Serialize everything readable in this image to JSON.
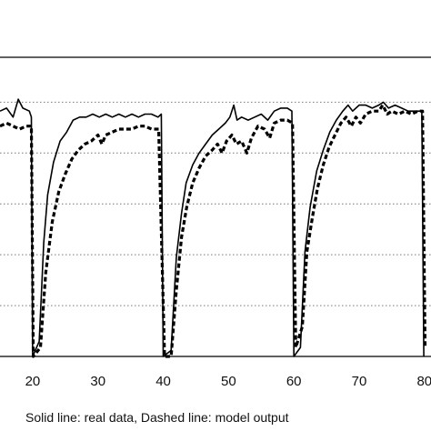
{
  "chart_data": {
    "type": "line",
    "grid": "horizontal dotted",
    "xlim": [
      15,
      81
    ],
    "ylim": [
      0,
      1
    ],
    "x_ticks": [
      20,
      30,
      40,
      50,
      60,
      70,
      80
    ],
    "x_tick_labels": [
      "20",
      "30",
      "40",
      "50",
      "60",
      "70",
      "80"
    ],
    "caption": "Solid line: real data,  Dashed line: model output",
    "series": [
      {
        "style": "solid",
        "color": "#000000",
        "points": [
          [
            15,
            0.82
          ],
          [
            16,
            0.83
          ],
          [
            17,
            0.8
          ],
          [
            17.8,
            0.86
          ],
          [
            18.5,
            0.83
          ],
          [
            19.5,
            0.82
          ],
          [
            19.8,
            0.8
          ],
          [
            20,
            0.0
          ],
          [
            21,
            0.05
          ],
          [
            21.7,
            0.38
          ],
          [
            22.3,
            0.54
          ],
          [
            23.2,
            0.65
          ],
          [
            24.2,
            0.72
          ],
          [
            25.2,
            0.75
          ],
          [
            26.2,
            0.79
          ],
          [
            27.2,
            0.8
          ],
          [
            28.2,
            0.8
          ],
          [
            29.2,
            0.81
          ],
          [
            30.2,
            0.8
          ],
          [
            31.2,
            0.81
          ],
          [
            32.2,
            0.8
          ],
          [
            33.2,
            0.81
          ],
          [
            34.2,
            0.8
          ],
          [
            35.2,
            0.81
          ],
          [
            36.2,
            0.8
          ],
          [
            37.2,
            0.81
          ],
          [
            38.2,
            0.81
          ],
          [
            39.2,
            0.8
          ],
          [
            39.7,
            0.81
          ],
          [
            40.0,
            0.0
          ],
          [
            41.2,
            0.02
          ],
          [
            42.0,
            0.33
          ],
          [
            42.8,
            0.48
          ],
          [
            43.5,
            0.58
          ],
          [
            44.5,
            0.64
          ],
          [
            45.5,
            0.68
          ],
          [
            46.5,
            0.71
          ],
          [
            47.5,
            0.74
          ],
          [
            48.5,
            0.76
          ],
          [
            49.5,
            0.78
          ],
          [
            50.2,
            0.8
          ],
          [
            50.8,
            0.84
          ],
          [
            51.3,
            0.79
          ],
          [
            52.0,
            0.8
          ],
          [
            53.0,
            0.79
          ],
          [
            54.0,
            0.8
          ],
          [
            55.0,
            0.81
          ],
          [
            56.0,
            0.79
          ],
          [
            57.0,
            0.82
          ],
          [
            58.0,
            0.83
          ],
          [
            59.0,
            0.83
          ],
          [
            59.7,
            0.82
          ],
          [
            60.0,
            0.0
          ],
          [
            61.0,
            0.03
          ],
          [
            61.7,
            0.35
          ],
          [
            62.5,
            0.5
          ],
          [
            63.5,
            0.62
          ],
          [
            64.5,
            0.69
          ],
          [
            65.5,
            0.75
          ],
          [
            66.5,
            0.79
          ],
          [
            67.5,
            0.82
          ],
          [
            68.3,
            0.84
          ],
          [
            69.0,
            0.82
          ],
          [
            70.0,
            0.84
          ],
          [
            71.0,
            0.84
          ],
          [
            72.0,
            0.83
          ],
          [
            73.0,
            0.84
          ],
          [
            73.7,
            0.85
          ],
          [
            74.5,
            0.83
          ],
          [
            75.5,
            0.84
          ],
          [
            76.5,
            0.83
          ],
          [
            77.5,
            0.82
          ],
          [
            78.5,
            0.82
          ],
          [
            79.6,
            0.82
          ],
          [
            79.9,
            0.0
          ]
        ]
      },
      {
        "style": "dashed",
        "color": "#000000",
        "points": [
          [
            15,
            0.77
          ],
          [
            16,
            0.78
          ],
          [
            17,
            0.77
          ],
          [
            18,
            0.76
          ],
          [
            19,
            0.77
          ],
          [
            19.8,
            0.77
          ],
          [
            20.1,
            0.0
          ],
          [
            21.2,
            0.03
          ],
          [
            22.0,
            0.28
          ],
          [
            23.0,
            0.45
          ],
          [
            24.0,
            0.55
          ],
          [
            25.0,
            0.61
          ],
          [
            26.0,
            0.66
          ],
          [
            27.0,
            0.69
          ],
          [
            28.0,
            0.71
          ],
          [
            29.0,
            0.72
          ],
          [
            30.0,
            0.74
          ],
          [
            30.6,
            0.71
          ],
          [
            31.2,
            0.74
          ],
          [
            32.2,
            0.75
          ],
          [
            33.2,
            0.76
          ],
          [
            34.2,
            0.76
          ],
          [
            35.2,
            0.76
          ],
          [
            36.2,
            0.77
          ],
          [
            37.2,
            0.77
          ],
          [
            38.2,
            0.76
          ],
          [
            39.3,
            0.76
          ],
          [
            40.2,
            0.0
          ],
          [
            41.2,
            0.0
          ],
          [
            42.0,
            0.22
          ],
          [
            42.8,
            0.4
          ],
          [
            43.6,
            0.5
          ],
          [
            44.5,
            0.58
          ],
          [
            45.5,
            0.63
          ],
          [
            46.5,
            0.67
          ],
          [
            47.5,
            0.69
          ],
          [
            48.3,
            0.71
          ],
          [
            49.0,
            0.68
          ],
          [
            49.7,
            0.72
          ],
          [
            50.5,
            0.74
          ],
          [
            51.2,
            0.71
          ],
          [
            52.0,
            0.72
          ],
          [
            52.8,
            0.68
          ],
          [
            53.5,
            0.73
          ],
          [
            54.5,
            0.77
          ],
          [
            55.5,
            0.76
          ],
          [
            56.3,
            0.73
          ],
          [
            57.0,
            0.78
          ],
          [
            58.0,
            0.79
          ],
          [
            59.0,
            0.79
          ],
          [
            59.8,
            0.78
          ],
          [
            60.3,
            0.03
          ],
          [
            61.3,
            0.1
          ],
          [
            62.0,
            0.35
          ],
          [
            62.8,
            0.46
          ],
          [
            63.6,
            0.56
          ],
          [
            64.5,
            0.64
          ],
          [
            65.4,
            0.7
          ],
          [
            66.3,
            0.74
          ],
          [
            67.2,
            0.78
          ],
          [
            68.0,
            0.8
          ],
          [
            68.8,
            0.77
          ],
          [
            69.5,
            0.8
          ],
          [
            70.2,
            0.78
          ],
          [
            71.0,
            0.81
          ],
          [
            72.0,
            0.82
          ],
          [
            73.0,
            0.82
          ],
          [
            73.6,
            0.84
          ],
          [
            74.3,
            0.81
          ],
          [
            75.0,
            0.82
          ],
          [
            76.0,
            0.81
          ],
          [
            77.0,
            0.82
          ],
          [
            78.0,
            0.81
          ],
          [
            79.0,
            0.82
          ],
          [
            79.7,
            0.82
          ],
          [
            80.1,
            0.03
          ]
        ]
      }
    ]
  }
}
